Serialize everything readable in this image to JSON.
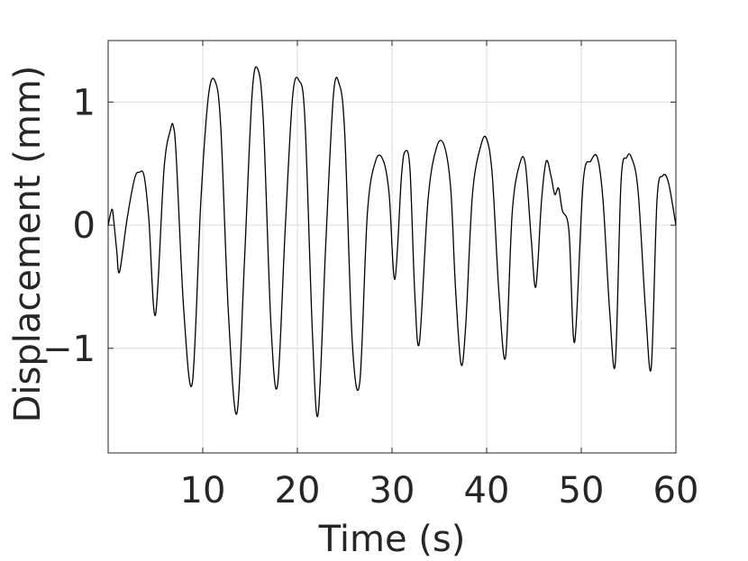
{
  "chart_data": {
    "type": "line",
    "title": "",
    "xlabel": "Time (s)",
    "ylabel": "Displacement (mm)",
    "xlim": [
      0,
      60
    ],
    "ylim": [
      -1.85,
      1.5
    ],
    "xticks": [
      10,
      20,
      30,
      40,
      50,
      60
    ],
    "xtick_labels": [
      "10",
      "20",
      "30",
      "40",
      "50",
      "60"
    ],
    "yticks": [
      1,
      0,
      -1
    ],
    "ytick_labels": [
      "1",
      "0",
      "−1"
    ],
    "grid": true,
    "legend": "none",
    "series": [
      {
        "color": "#000000",
        "x": [
          0,
          0.4,
          0.6,
          0.9,
          1.2,
          2.0,
          2.8,
          3.3,
          3.8,
          4.3,
          5.0,
          5.9,
          6.6,
          6.9,
          7.2,
          8.0,
          8.9,
          9.8,
          10.6,
          11.3,
          11.9,
          12.7,
          13.6,
          14.4,
          15.2,
          15.8,
          16.4,
          17.2,
          17.9,
          18.7,
          19.5,
          20.2,
          20.8,
          21.6,
          22.2,
          23.0,
          23.8,
          24.4,
          25.0,
          25.8,
          26.6,
          27.4,
          28.3,
          29.1,
          29.7,
          30.3,
          31.0,
          31.4,
          31.9,
          32.4,
          32.9,
          33.8,
          34.7,
          35.5,
          36.2,
          36.7,
          37.3,
          37.8,
          38.5,
          39.4,
          40.0,
          40.6,
          41.3,
          42.0,
          42.7,
          43.5,
          44.1,
          44.7,
          45.2,
          45.8,
          46.3,
          46.8,
          47.2,
          47.6,
          48.0,
          48.7,
          49.3,
          50.2,
          51.0,
          51.7,
          52.3,
          53.0,
          53.6,
          54.2,
          54.8,
          55.3,
          56.0,
          56.8,
          57.4,
          58.0,
          58.6,
          59.2,
          60.0
        ],
        "y": [
          0,
          0.13,
          0.03,
          -0.2,
          -0.38,
          0.05,
          0.38,
          0.43,
          0.4,
          0.05,
          -0.73,
          0.45,
          0.78,
          0.8,
          0.55,
          -0.7,
          -1.28,
          0.2,
          1.05,
          1.17,
          0.8,
          -0.7,
          -1.53,
          -0.3,
          1.05,
          1.27,
          0.85,
          -0.8,
          -1.3,
          -0.05,
          1.05,
          1.17,
          0.85,
          -0.9,
          -1.53,
          -0.15,
          1.05,
          1.15,
          0.75,
          -0.95,
          -1.27,
          0.1,
          0.53,
          0.52,
          0.25,
          -0.44,
          0.4,
          0.6,
          0.45,
          -0.55,
          -0.95,
          0.2,
          0.63,
          0.65,
          0.3,
          -0.5,
          -1.13,
          -0.8,
          0.25,
          0.65,
          0.7,
          0.4,
          -0.55,
          -1.07,
          0.1,
          0.5,
          0.49,
          -0.1,
          -0.5,
          0.2,
          0.52,
          0.4,
          0.25,
          0.3,
          0.12,
          -0.05,
          -0.95,
          0.35,
          0.52,
          0.55,
          0.2,
          -0.7,
          -1.12,
          0.35,
          0.55,
          0.55,
          0.28,
          -0.7,
          -1.15,
          0.2,
          0.4,
          0.35,
          0
        ]
      }
    ]
  }
}
